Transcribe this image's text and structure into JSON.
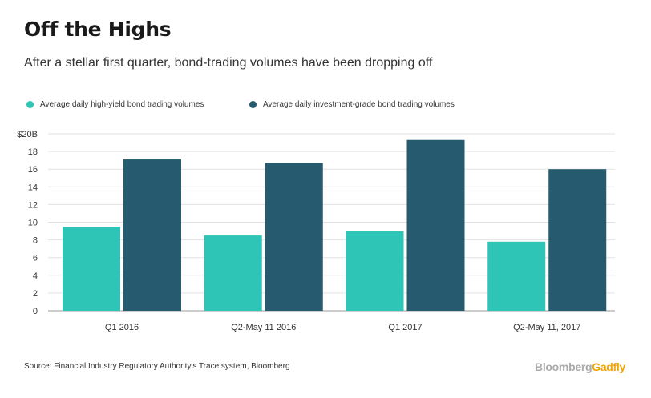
{
  "header": {
    "title": "Off the Highs",
    "subtitle": "After a stellar first quarter, bond-trading volumes have been dropping off"
  },
  "legend": {
    "items": [
      {
        "label": "Average daily high-yield bond trading volumes",
        "color": "#2ec4b6"
      },
      {
        "label": "Average daily investment-grade bond trading volumes",
        "color": "#265a6e"
      }
    ]
  },
  "chart_data": {
    "type": "bar",
    "categories": [
      "Q1 2016",
      "Q2-May 11 2016",
      "Q1 2017",
      "Q2-May 11, 2017"
    ],
    "series": [
      {
        "name": "Average daily high-yield bond trading volumes",
        "values": [
          9.5,
          8.5,
          9.0,
          7.8
        ],
        "color": "#2ec4b6"
      },
      {
        "name": "Average daily investment-grade bond trading volumes",
        "values": [
          17.1,
          16.7,
          19.3,
          16.0
        ],
        "color": "#265a6e"
      }
    ],
    "ylim": [
      0,
      20
    ],
    "yticks": [
      0,
      2,
      4,
      6,
      8,
      10,
      12,
      14,
      16,
      18,
      20
    ],
    "ytick_labels": [
      "0",
      "2",
      "4",
      "6",
      "8",
      "10",
      "12",
      "14",
      "16",
      "18",
      "$20B"
    ],
    "grid": true
  },
  "footer": {
    "source": "Source: Financial Industry Regulatory Authority's Trace system, Bloomberg",
    "brand_part1": "Bloomberg",
    "brand_part2": "Gadfly"
  }
}
